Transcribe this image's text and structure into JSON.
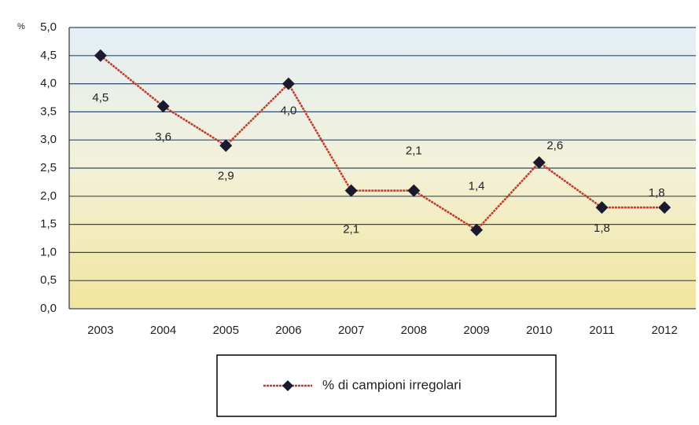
{
  "chart_data": {
    "type": "line",
    "y_axis_label": "%",
    "categories": [
      "2003",
      "2004",
      "2005",
      "2006",
      "2007",
      "2008",
      "2009",
      "2010",
      "2011",
      "2012"
    ],
    "series": [
      {
        "name": "% di campioni irregolari",
        "color": "#c0392b",
        "marker_color": "#1a1a2e",
        "values": [
          4.5,
          3.6,
          2.9,
          4.0,
          2.1,
          2.1,
          1.4,
          2.6,
          1.8,
          1.8
        ],
        "value_labels": [
          "4,5",
          "3,6",
          "2,9",
          "4,0",
          "2,1",
          "2,1",
          "1,4",
          "2,6",
          "1,8",
          "1,8"
        ]
      }
    ],
    "ylim": [
      0,
      5
    ],
    "yticks": [
      {
        "value": 0,
        "label": "0,0"
      },
      {
        "value": 0.5,
        "label": "0,5"
      },
      {
        "value": 1,
        "label": "1,0"
      },
      {
        "value": 1.5,
        "label": "1,5"
      },
      {
        "value": 2,
        "label": "2,0"
      },
      {
        "value": 2.5,
        "label": "2,5"
      },
      {
        "value": 3,
        "label": "3,0"
      },
      {
        "value": 3.5,
        "label": "3,5"
      },
      {
        "value": 4,
        "label": "4,0"
      },
      {
        "value": 4.5,
        "label": "4,5"
      },
      {
        "value": 5,
        "label": "5,0"
      }
    ],
    "grid": true,
    "legend": "bottom"
  }
}
